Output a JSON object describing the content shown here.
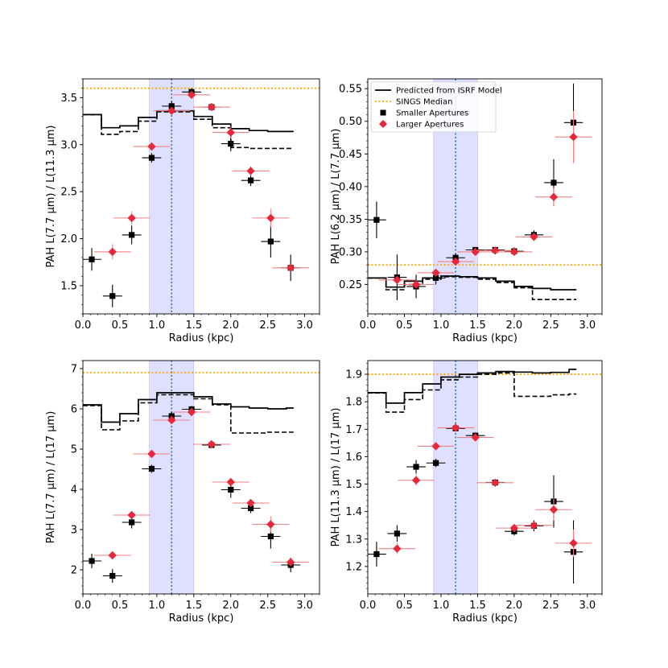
{
  "chart_data": [
    {
      "type": "scatter",
      "xlabel": "Radius (kpc)",
      "ylabel": "PAH L(7.7 μm) / L(11.3 μm)",
      "xlim": [
        0.0,
        3.2
      ],
      "ylim": [
        1.2,
        3.7
      ],
      "xticks": [
        0.0,
        0.5,
        1.0,
        1.5,
        2.0,
        2.5,
        3.0
      ],
      "xtick_labels": [
        "0.0",
        "0.5",
        "1.0",
        "1.5",
        "2.0",
        "2.5",
        "3.0"
      ],
      "yticks": [
        1.5,
        2.0,
        2.5,
        3.0,
        3.5
      ],
      "ytick_labels": [
        "1.5",
        "2.0",
        "2.5",
        "3.0",
        "3.5"
      ],
      "median": 3.6,
      "band": [
        0.9,
        1.5
      ],
      "vline": 1.2,
      "show_legend": false,
      "model_solid": {
        "edges": [
          0.0,
          0.25,
          0.5,
          0.75,
          1.0,
          1.25,
          1.5,
          1.75,
          2.0,
          2.25,
          2.5,
          2.75,
          2.85
        ],
        "values": [
          3.32,
          3.18,
          3.2,
          3.29,
          3.36,
          3.36,
          3.3,
          3.22,
          3.17,
          3.15,
          3.14,
          3.14
        ]
      },
      "model_dashed": {
        "edges": [
          0.0,
          0.25,
          0.5,
          0.75,
          1.0,
          1.25,
          1.5,
          1.75,
          2.0,
          2.25,
          2.5,
          2.75,
          2.85
        ],
        "values": [
          3.32,
          3.11,
          3.14,
          3.25,
          3.35,
          3.35,
          3.27,
          3.18,
          2.97,
          2.96,
          2.96,
          2.96
        ]
      },
      "series": [
        {
          "name": "Smaller Apertures",
          "x": [
            0.12,
            0.4,
            0.66,
            0.93,
            1.2,
            1.47,
            1.74,
            2.0,
            2.27,
            2.54,
            2.81
          ],
          "y": [
            1.78,
            1.39,
            2.04,
            2.86,
            3.41,
            3.56,
            3.4,
            3.01,
            2.62,
            1.97,
            1.69
          ],
          "yerr": [
            0.12,
            0.12,
            0.1,
            0.05,
            0.05,
            0.04,
            0.04,
            0.08,
            0.06,
            0.17,
            0.14
          ],
          "xerr": 0.13
        },
        {
          "name": "Larger Apertures",
          "x": [
            0.4,
            0.66,
            0.93,
            1.2,
            1.47,
            1.74,
            2.0,
            2.27,
            2.54,
            2.81
          ],
          "y": [
            1.86,
            2.22,
            2.98,
            3.36,
            3.53,
            3.4,
            3.13,
            2.72,
            2.22,
            1.69
          ],
          "yerr": [
            0.08,
            0.07,
            0.04,
            0.03,
            0.03,
            0.03,
            0.06,
            0.05,
            0.1,
            0.03
          ],
          "xerr": 0.25
        }
      ]
    },
    {
      "type": "scatter",
      "xlabel": "Radius (kpc)",
      "ylabel": "PAH L(6.2 μm) / L(7.7 μm)",
      "xlim": [
        0.0,
        3.2
      ],
      "ylim": [
        0.205,
        0.565
      ],
      "xticks": [
        0.0,
        0.5,
        1.0,
        1.5,
        2.0,
        2.5,
        3.0
      ],
      "xtick_labels": [
        "0.0",
        "0.5",
        "1.0",
        "1.5",
        "2.0",
        "2.5",
        "3.0"
      ],
      "yticks": [
        0.25,
        0.3,
        0.35,
        0.4,
        0.45,
        0.5,
        0.55
      ],
      "ytick_labels": [
        "0.25",
        "0.30",
        "0.35",
        "0.40",
        "0.45",
        "0.50",
        "0.55"
      ],
      "median": 0.28,
      "band": [
        0.9,
        1.5
      ],
      "vline": 1.2,
      "show_legend": true,
      "model_solid": {
        "edges": [
          0.0,
          0.25,
          0.5,
          0.75,
          1.0,
          1.25,
          1.5,
          1.75,
          2.0,
          2.25,
          2.5,
          2.75,
          2.85
        ],
        "values": [
          0.26,
          0.246,
          0.255,
          0.26,
          0.263,
          0.262,
          0.26,
          0.255,
          0.247,
          0.244,
          0.242,
          0.242
        ]
      },
      "model_dashed": {
        "edges": [
          0.0,
          0.25,
          0.5,
          0.75,
          1.0,
          1.25,
          1.5,
          1.75,
          2.0,
          2.25,
          2.5,
          2.75,
          2.85
        ],
        "values": [
          0.26,
          0.242,
          0.25,
          0.258,
          0.262,
          0.261,
          0.258,
          0.253,
          0.245,
          0.227,
          0.227,
          0.227
        ]
      },
      "series": [
        {
          "name": "Smaller Apertures",
          "x": [
            0.12,
            0.4,
            0.66,
            0.93,
            1.2,
            1.47,
            1.74,
            2.0,
            2.27,
            2.54,
            2.81
          ],
          "y": [
            0.349,
            0.261,
            0.247,
            0.26,
            0.291,
            0.303,
            0.303,
            0.301,
            0.326,
            0.406,
            0.498
          ],
          "yerr": [
            0.028,
            0.035,
            0.018,
            0.01,
            0.006,
            0.004,
            0.004,
            0.006,
            0.007,
            0.036,
            0.06
          ],
          "xerr": 0.13
        },
        {
          "name": "Larger Apertures",
          "x": [
            0.4,
            0.66,
            0.93,
            1.2,
            1.47,
            1.74,
            2.0,
            2.27,
            2.54,
            2.81
          ],
          "y": [
            0.257,
            0.25,
            0.268,
            0.285,
            0.3,
            0.302,
            0.3,
            0.323,
            0.384,
            0.476
          ],
          "yerr": [
            0.005,
            0.005,
            0.004,
            0.003,
            0.003,
            0.003,
            0.004,
            0.005,
            0.014,
            0.04
          ],
          "xerr": 0.25
        }
      ]
    },
    {
      "type": "scatter",
      "xlabel": "Radius (kpc)",
      "ylabel": "PAH L(7.7 μm) / L(17 μm)",
      "xlim": [
        0.0,
        3.2
      ],
      "ylim": [
        1.4,
        7.2
      ],
      "xticks": [
        0.0,
        0.5,
        1.0,
        1.5,
        2.0,
        2.5,
        3.0
      ],
      "xtick_labels": [
        "0.0",
        "0.5",
        "1.0",
        "1.5",
        "2.0",
        "2.5",
        "3.0"
      ],
      "yticks": [
        2,
        3,
        4,
        5,
        6,
        7
      ],
      "ytick_labels": [
        "2",
        "3",
        "4",
        "5",
        "6",
        "7"
      ],
      "median": 6.9,
      "band": [
        0.9,
        1.5
      ],
      "vline": 1.2,
      "show_legend": false,
      "model_solid": {
        "edges": [
          0.0,
          0.25,
          0.5,
          0.75,
          1.0,
          1.25,
          1.5,
          1.75,
          2.0,
          2.25,
          2.5,
          2.75,
          2.85
        ],
        "values": [
          6.1,
          5.67,
          5.88,
          6.23,
          6.4,
          6.4,
          6.3,
          6.12,
          6.05,
          6.02,
          6.0,
          6.02
        ]
      },
      "model_dashed": {
        "edges": [
          0.0,
          0.25,
          0.5,
          0.75,
          1.0,
          1.25,
          1.5,
          1.75,
          2.0,
          2.25,
          2.5,
          2.75,
          2.85
        ],
        "values": [
          6.08,
          5.48,
          5.7,
          6.15,
          6.35,
          6.35,
          6.25,
          6.1,
          5.4,
          5.4,
          5.42,
          5.42
        ]
      },
      "series": [
        {
          "name": "Smaller Apertures",
          "x": [
            0.12,
            0.4,
            0.66,
            0.93,
            1.2,
            1.47,
            1.74,
            2.0,
            2.27,
            2.54,
            2.81
          ],
          "y": [
            2.22,
            1.85,
            3.18,
            4.51,
            5.82,
            5.99,
            5.1,
            3.99,
            3.53,
            2.83,
            2.12
          ],
          "yerr": [
            0.18,
            0.17,
            0.15,
            0.1,
            0.1,
            0.08,
            0.07,
            0.2,
            0.12,
            0.3,
            0.18
          ],
          "xerr": 0.13
        },
        {
          "name": "Larger Apertures",
          "x": [
            0.4,
            0.66,
            0.93,
            1.2,
            1.47,
            1.74,
            2.0,
            2.27,
            2.54,
            2.81
          ],
          "y": [
            2.36,
            3.36,
            4.88,
            5.72,
            5.92,
            5.12,
            4.18,
            3.66,
            3.13,
            2.19
          ],
          "yerr": [
            0.05,
            0.06,
            0.05,
            0.04,
            0.04,
            0.03,
            0.05,
            0.05,
            0.2,
            0.05
          ],
          "xerr": 0.25
        }
      ]
    },
    {
      "type": "scatter",
      "xlabel": "Radius (kpc)",
      "ylabel": "PAH L(11.3 μm) / L(17 μm)",
      "xlim": [
        0.0,
        3.2
      ],
      "ylim": [
        1.1,
        1.95
      ],
      "xticks": [
        0.0,
        0.5,
        1.0,
        1.5,
        2.0,
        2.5,
        3.0
      ],
      "xtick_labels": [
        "0.0",
        "0.5",
        "1.0",
        "1.5",
        "2.0",
        "2.5",
        "3.0"
      ],
      "yticks": [
        1.2,
        1.3,
        1.4,
        1.5,
        1.6,
        1.7,
        1.8,
        1.9
      ],
      "ytick_labels": [
        "1.2",
        "1.3",
        "1.4",
        "1.5",
        "1.6",
        "1.7",
        "1.8",
        "1.9"
      ],
      "median": 1.9,
      "band": [
        0.9,
        1.5
      ],
      "vline": 1.2,
      "show_legend": false,
      "model_solid": {
        "edges": [
          0.0,
          0.25,
          0.5,
          0.75,
          1.0,
          1.25,
          1.5,
          1.75,
          2.0,
          2.25,
          2.5,
          2.75,
          2.85
        ],
        "values": [
          1.833,
          1.795,
          1.833,
          1.865,
          1.89,
          1.9,
          1.905,
          1.91,
          1.908,
          1.905,
          1.907,
          1.918
        ]
      },
      "model_dashed": {
        "edges": [
          0.0,
          0.25,
          0.5,
          0.75,
          1.0,
          1.25,
          1.5,
          1.75,
          2.0,
          2.25,
          2.5,
          2.75,
          2.85
        ],
        "values": [
          1.832,
          1.762,
          1.808,
          1.843,
          1.88,
          1.89,
          1.9,
          1.905,
          1.82,
          1.82,
          1.825,
          1.828
        ]
      },
      "series": [
        {
          "name": "Smaller Apertures",
          "x": [
            0.12,
            0.4,
            0.66,
            0.93,
            1.2,
            1.47,
            1.74,
            2.0,
            2.27,
            2.54,
            2.81
          ],
          "y": [
            1.245,
            1.32,
            1.563,
            1.577,
            1.703,
            1.677,
            1.506,
            1.328,
            1.348,
            1.437,
            1.253
          ],
          "yerr": [
            0.045,
            0.03,
            0.025,
            0.015,
            0.01,
            0.01,
            0.01,
            0.015,
            0.02,
            0.095,
            0.115
          ],
          "xerr": 0.13
        },
        {
          "name": "Larger Apertures",
          "x": [
            0.4,
            0.66,
            0.93,
            1.2,
            1.47,
            1.74,
            2.0,
            2.27,
            2.54,
            2.81
          ],
          "y": [
            1.265,
            1.514,
            1.638,
            1.705,
            1.67,
            1.505,
            1.34,
            1.35,
            1.407,
            1.285
          ],
          "yerr": [
            0.02,
            0.02,
            0.01,
            0.008,
            0.008,
            0.006,
            0.008,
            0.01,
            0.04,
            0.05
          ],
          "xerr": 0.25
        }
      ]
    }
  ],
  "legend": {
    "model_label": "Predicted from ISRF Model",
    "median_label": "SINGS Median",
    "small_label": "Smaller Apertures",
    "large_label": "Larger Apertures"
  },
  "colors": {
    "model": "#000000",
    "median": "#ffa500",
    "small": "#000000",
    "large": "#e8283a",
    "large_err": "#f08080",
    "band": "#d9d9ff",
    "vline": "#1f77b4"
  }
}
